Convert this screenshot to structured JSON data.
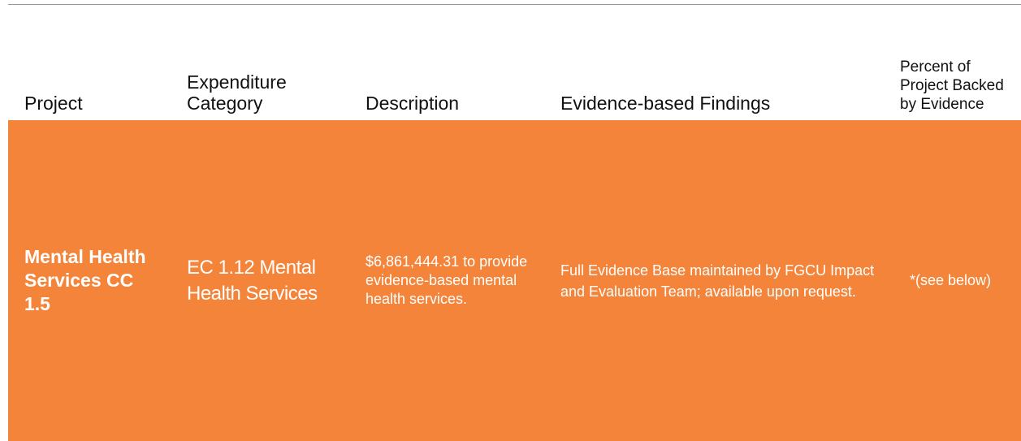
{
  "table": {
    "header": [
      "Project",
      "Expenditure Category",
      "Description",
      "Evidence-based Findings",
      "Percent of Project Backed by Evidence"
    ],
    "rows": [
      [
        "Mental Health Services CC 1.5",
        "EC 1.12 Mental Health Services",
        "$6,861,444.31 to provide evidence-based mental health services.",
        "Full Evidence Base maintained by FGCU Impact and Evaluation Team; available upon request.",
        "*(see below)"
      ]
    ]
  }
}
